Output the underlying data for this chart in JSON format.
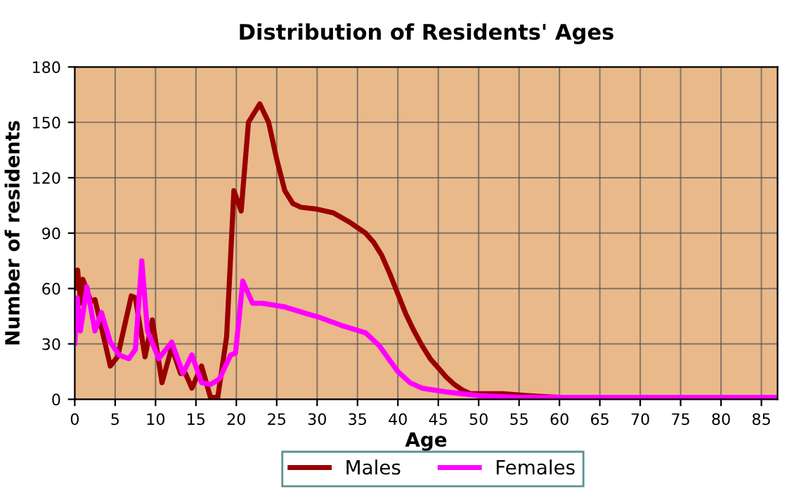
{
  "chart_data": {
    "type": "line",
    "title": "Distribution of Residents' Ages",
    "xlabel": "Age",
    "ylabel": "Number of residents",
    "xlim": [
      0,
      87
    ],
    "xticks": [
      0,
      5,
      10,
      15,
      20,
      25,
      30,
      35,
      40,
      45,
      50,
      55,
      60,
      65,
      70,
      75,
      80,
      85
    ],
    "ylim": [
      0,
      180
    ],
    "yticks": [
      0,
      30,
      60,
      90,
      120,
      150,
      180
    ],
    "grid": true,
    "legend": "bottom",
    "marker": "none",
    "line_style": "solid",
    "series": [
      {
        "name": "Males",
        "color": "#990000",
        "x": [
          0,
          0.35,
          0.75,
          1,
          2,
          2.5,
          3.3,
          4.4,
          5.3,
          7,
          7.5,
          8.7,
          9.6,
          10.8,
          12,
          13.1,
          13.7,
          14.5,
          15.7,
          16.8,
          17.7,
          18.8,
          19.7,
          20.6,
          21.5,
          22.9,
          24,
          25,
          26,
          27,
          28,
          30,
          32,
          34,
          36,
          37,
          38,
          39,
          40,
          41,
          42,
          43,
          44,
          45,
          46,
          47,
          48,
          49,
          50,
          53,
          56,
          60,
          70,
          87
        ],
        "values": [
          60,
          70,
          52,
          65,
          53,
          54,
          39,
          18,
          23,
          56,
          55,
          23,
          43,
          9,
          28,
          14,
          14,
          6,
          18,
          1,
          1,
          34,
          113,
          102,
          150,
          160,
          150,
          130,
          113,
          106,
          104,
          103,
          101,
          96,
          90,
          85,
          78,
          68,
          57,
          46,
          37,
          29,
          22,
          17,
          12,
          8,
          5,
          3,
          3,
          3,
          2,
          1,
          1,
          1
        ]
      },
      {
        "name": "Females",
        "color": "#ff00ff",
        "x": [
          0,
          0.3,
          0.7,
          1.5,
          2.5,
          3.3,
          4.4,
          5.5,
          6.7,
          7.5,
          8.3,
          9,
          10.4,
          12,
          13.4,
          14.5,
          15.7,
          16.8,
          17.9,
          19.3,
          19.9,
          20.8,
          22,
          23.2,
          26,
          29,
          30.2,
          33,
          36,
          37.7,
          39,
          40,
          41.5,
          43,
          46,
          50,
          55,
          60,
          87
        ],
        "values": [
          30,
          55,
          37,
          61,
          37,
          47,
          31,
          24,
          22,
          27,
          75,
          37,
          22,
          31,
          14,
          24,
          9,
          8,
          11,
          24,
          25,
          64,
          52,
          52,
          50,
          46,
          44.5,
          40,
          36,
          29,
          21,
          15,
          9,
          6,
          4,
          2,
          1,
          1,
          1
        ]
      }
    ]
  }
}
